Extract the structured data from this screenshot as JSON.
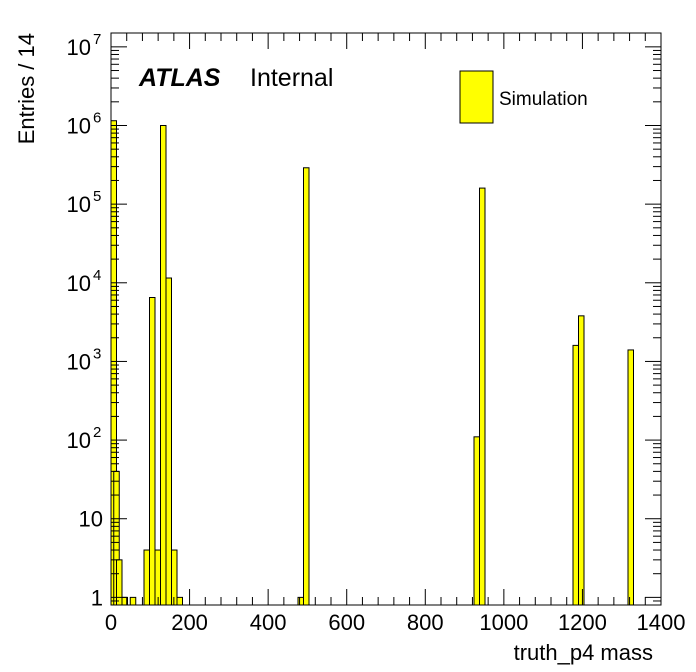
{
  "chart_data": {
    "type": "bar",
    "title": "",
    "xlabel": "truth_p4 mass",
    "ylabel": "Entries / 14",
    "xlim": [
      0,
      1400
    ],
    "ylim": [
      0.8,
      15000000
    ],
    "log_y": true,
    "bin_width": 14,
    "x_ticks": [
      "0",
      "200",
      "400",
      "600",
      "800",
      "1000",
      "1200",
      "1400"
    ],
    "y_ticks": [
      {
        "value": 1,
        "base": "1",
        "exp": ""
      },
      {
        "value": 10,
        "base": "10",
        "exp": ""
      },
      {
        "value": 100,
        "base": "10",
        "exp": "2"
      },
      {
        "value": 1000,
        "base": "10",
        "exp": "3"
      },
      {
        "value": 10000,
        "base": "10",
        "exp": "4"
      },
      {
        "value": 100000,
        "base": "10",
        "exp": "5"
      },
      {
        "value": 1000000,
        "base": "10",
        "exp": "6"
      },
      {
        "value": 10000000,
        "base": "10",
        "exp": "7"
      }
    ],
    "grid": false,
    "legend_position": "top-right",
    "series": [
      {
        "name": "Simulation",
        "color": "#ffff00",
        "bins": [
          {
            "x": 0,
            "y": 1150000
          },
          {
            "x": 7,
            "y": 40
          },
          {
            "x": 14,
            "y": 3
          },
          {
            "x": 28,
            "y": 1
          },
          {
            "x": 49,
            "y": 1
          },
          {
            "x": 84,
            "y": 4
          },
          {
            "x": 98,
            "y": 6500
          },
          {
            "x": 112,
            "y": 4
          },
          {
            "x": 126,
            "y": 1000000
          },
          {
            "x": 140,
            "y": 11500
          },
          {
            "x": 154,
            "y": 4
          },
          {
            "x": 168,
            "y": 1
          },
          {
            "x": 476,
            "y": 1
          },
          {
            "x": 490,
            "y": 290000
          },
          {
            "x": 924,
            "y": 110
          },
          {
            "x": 938,
            "y": 160000
          },
          {
            "x": 1176,
            "y": 1600
          },
          {
            "x": 1190,
            "y": 3800
          },
          {
            "x": 1316,
            "y": 1400
          }
        ]
      }
    ]
  },
  "labels": {
    "atlas": "ATLAS",
    "internal": "Internal",
    "legend_entry": "Simulation"
  }
}
